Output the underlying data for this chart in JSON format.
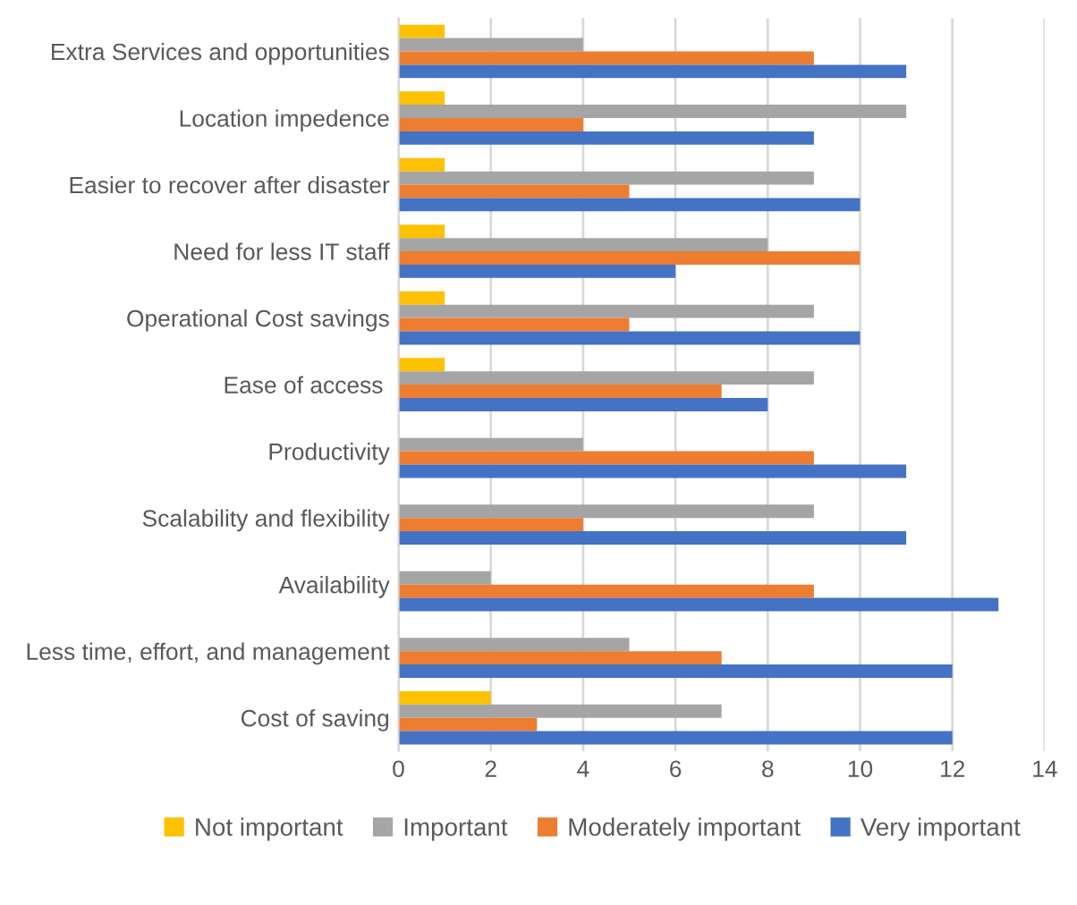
{
  "chart_data": {
    "type": "bar",
    "orientation": "horizontal",
    "categories": [
      "Extra Services and opportunities",
      "Location impedence",
      "Easier to recover after disaster",
      "Need for less IT staff",
      "Operational Cost savings",
      "Ease of access ",
      "Productivity",
      "Scalability and flexibility",
      "Availability",
      "Less time, effort, and management",
      "Cost of saving"
    ],
    "series": [
      {
        "name": "Not important",
        "color": "#ffc000",
        "values": [
          1,
          1,
          1,
          1,
          1,
          1,
          0,
          0,
          0,
          0,
          2
        ]
      },
      {
        "name": "Important",
        "color": "#a5a5a5",
        "values": [
          4,
          11,
          9,
          8,
          9,
          9,
          4,
          9,
          2,
          5,
          7
        ]
      },
      {
        "name": "Moderately important",
        "color": "#ed7d31",
        "values": [
          9,
          4,
          5,
          10,
          5,
          7,
          9,
          4,
          9,
          7,
          3
        ]
      },
      {
        "name": "Very important",
        "color": "#4472c4",
        "values": [
          11,
          9,
          10,
          6,
          10,
          8,
          11,
          11,
          13,
          12,
          12
        ]
      }
    ],
    "xlim": [
      0,
      14
    ],
    "xticks": [
      0,
      2,
      4,
      6,
      8,
      10,
      12,
      14
    ],
    "grid": "x",
    "legend": "bottom"
  }
}
